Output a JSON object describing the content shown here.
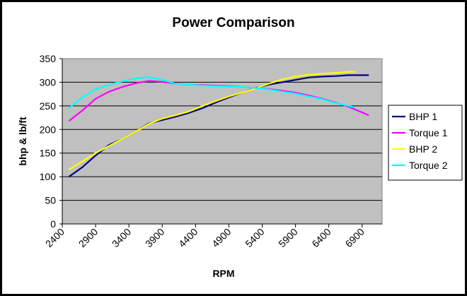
{
  "chart_data": {
    "type": "line",
    "title": "Power Comparison",
    "xlabel": "RPM",
    "ylabel": "bhp & lb/ft",
    "xlim": [
      2400,
      7200
    ],
    "ylim": [
      0,
      350
    ],
    "x_ticks": [
      2400,
      2900,
      3400,
      3900,
      4400,
      4900,
      5400,
      5900,
      6400,
      6900
    ],
    "y_ticks": [
      0,
      50,
      100,
      150,
      200,
      250,
      300,
      350
    ],
    "grid": "horizontal",
    "plot_background": "#c0c0c0",
    "legend_position": "right",
    "series": [
      {
        "name": "BHP 1",
        "color": "#000080",
        "x": [
          2500,
          2700,
          2900,
          3100,
          3300,
          3500,
          3700,
          3900,
          4100,
          4300,
          4500,
          4700,
          4900,
          5100,
          5300,
          5500,
          5700,
          5900,
          6100,
          6300,
          6500,
          6700,
          6900,
          7000
        ],
        "values": [
          100,
          120,
          145,
          167,
          180,
          195,
          213,
          220,
          227,
          235,
          245,
          257,
          268,
          278,
          288,
          295,
          300,
          305,
          310,
          312,
          313,
          315,
          315,
          315
        ]
      },
      {
        "name": "Torque 1",
        "color": "#ff00ff",
        "x": [
          2500,
          2700,
          2900,
          3100,
          3300,
          3500,
          3700,
          3900,
          4100,
          4300,
          4500,
          4700,
          4900,
          5100,
          5300,
          5500,
          5700,
          5900,
          6100,
          6300,
          6500,
          6700,
          6900,
          7000
        ],
        "values": [
          218,
          240,
          265,
          280,
          290,
          298,
          303,
          301,
          297,
          295,
          294,
          293,
          292,
          290,
          288,
          286,
          282,
          278,
          272,
          265,
          257,
          248,
          236,
          230
        ]
      },
      {
        "name": "BHP 2",
        "color": "#ffff00",
        "x": [
          2500,
          2700,
          2900,
          3100,
          3300,
          3500,
          3700,
          3900,
          4100,
          4300,
          4500,
          4700,
          4900,
          5100,
          5300,
          5500,
          5700,
          5900,
          6100,
          6300,
          6500,
          6700,
          6800
        ],
        "values": [
          115,
          132,
          150,
          165,
          180,
          195,
          212,
          223,
          230,
          238,
          250,
          260,
          270,
          278,
          287,
          297,
          306,
          312,
          316,
          318,
          320,
          322,
          322
        ]
      },
      {
        "name": "Torque 2",
        "color": "#00ffff",
        "x": [
          2500,
          2700,
          2900,
          3100,
          3300,
          3500,
          3700,
          3900,
          4100,
          4300,
          4500,
          4700,
          4900,
          5100,
          5300,
          5500,
          5700,
          5900,
          6100,
          6300,
          6500,
          6700,
          6800
        ],
        "values": [
          245,
          268,
          285,
          295,
          302,
          308,
          311,
          305,
          297,
          295,
          293,
          292,
          291,
          290,
          288,
          285,
          280,
          276,
          270,
          264,
          256,
          250,
          246
        ]
      }
    ]
  }
}
